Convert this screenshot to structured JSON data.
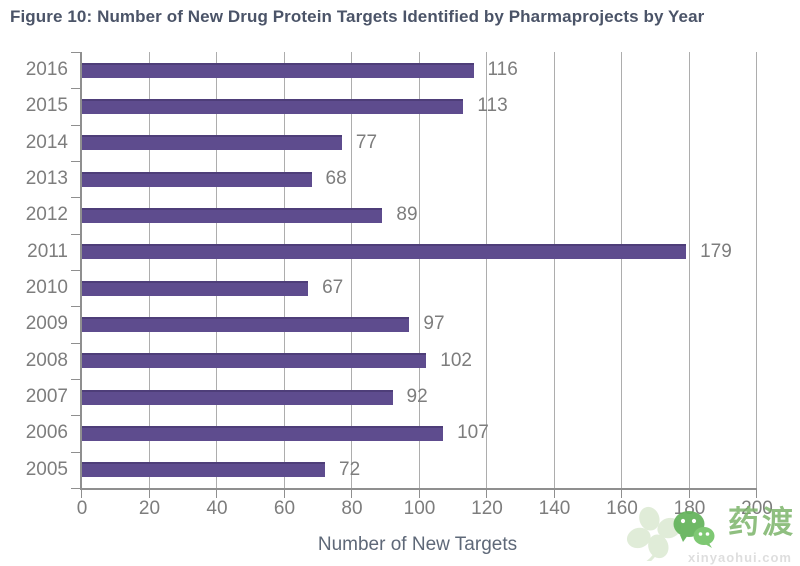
{
  "figure": {
    "title": "Figure 10: Number of New Drug Protein Targets Identified by Pharmaprojects by Year"
  },
  "chart_data": {
    "type": "bar",
    "orientation": "horizontal",
    "title": "Figure 10: Number of New Drug Protein Targets Identified by Pharmaprojects by Year",
    "categories": [
      "2016",
      "2015",
      "2014",
      "2013",
      "2012",
      "2011",
      "2010",
      "2009",
      "2008",
      "2007",
      "2006",
      "2005"
    ],
    "values": [
      116,
      113,
      77,
      68,
      89,
      179,
      67,
      97,
      102,
      92,
      107,
      72
    ],
    "xlabel": "Number of New Targets",
    "ylabel": "",
    "x_ticks": [
      0,
      20,
      40,
      60,
      80,
      100,
      120,
      140,
      160,
      180,
      200
    ],
    "xlim": [
      0,
      200
    ],
    "grid": "vertical",
    "legend": "none",
    "bar_color": "#5e4c8e",
    "label_color": "#7d7d7d",
    "title_color": "#4b5468"
  },
  "watermark": {
    "brand_text": "药渡",
    "url_text": "xinyaohui.com",
    "icons": [
      "clover-icon",
      "wechat-icon"
    ],
    "green": "#6cb05f"
  }
}
